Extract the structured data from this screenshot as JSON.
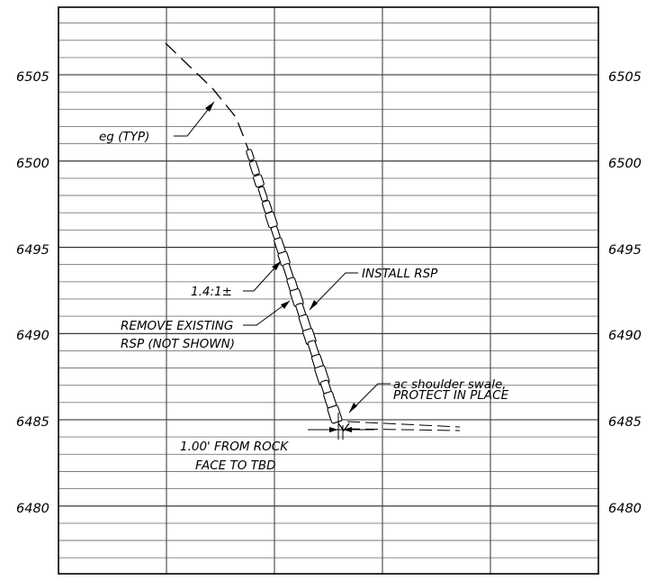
{
  "sheet": {
    "elevations": [
      {
        "id": "e6505",
        "label": "6505"
      },
      {
        "id": "e6500",
        "label": "6500"
      },
      {
        "id": "e6495",
        "label": "6495"
      },
      {
        "id": "e6490",
        "label": "6490"
      },
      {
        "id": "e6485",
        "label": "6485"
      },
      {
        "id": "e6480",
        "label": "6480"
      }
    ]
  },
  "notes": {
    "eg": "eg (TYP)",
    "slope": "1.4:1±",
    "install": "INSTALL RSP",
    "remove_line1": "REMOVE EXISTING",
    "remove_line2": "RSP (NOT SHOWN)",
    "swale_line1": "ac shoulder swale,",
    "swale_line2": "PROTECT IN PLACE",
    "offset_line1": "1.00' FROM ROCK",
    "offset_line2": "FACE TO TBD"
  },
  "colors": {
    "ink": "#000000",
    "grid": "#7a7a7a",
    "paper": "#ffffff"
  }
}
